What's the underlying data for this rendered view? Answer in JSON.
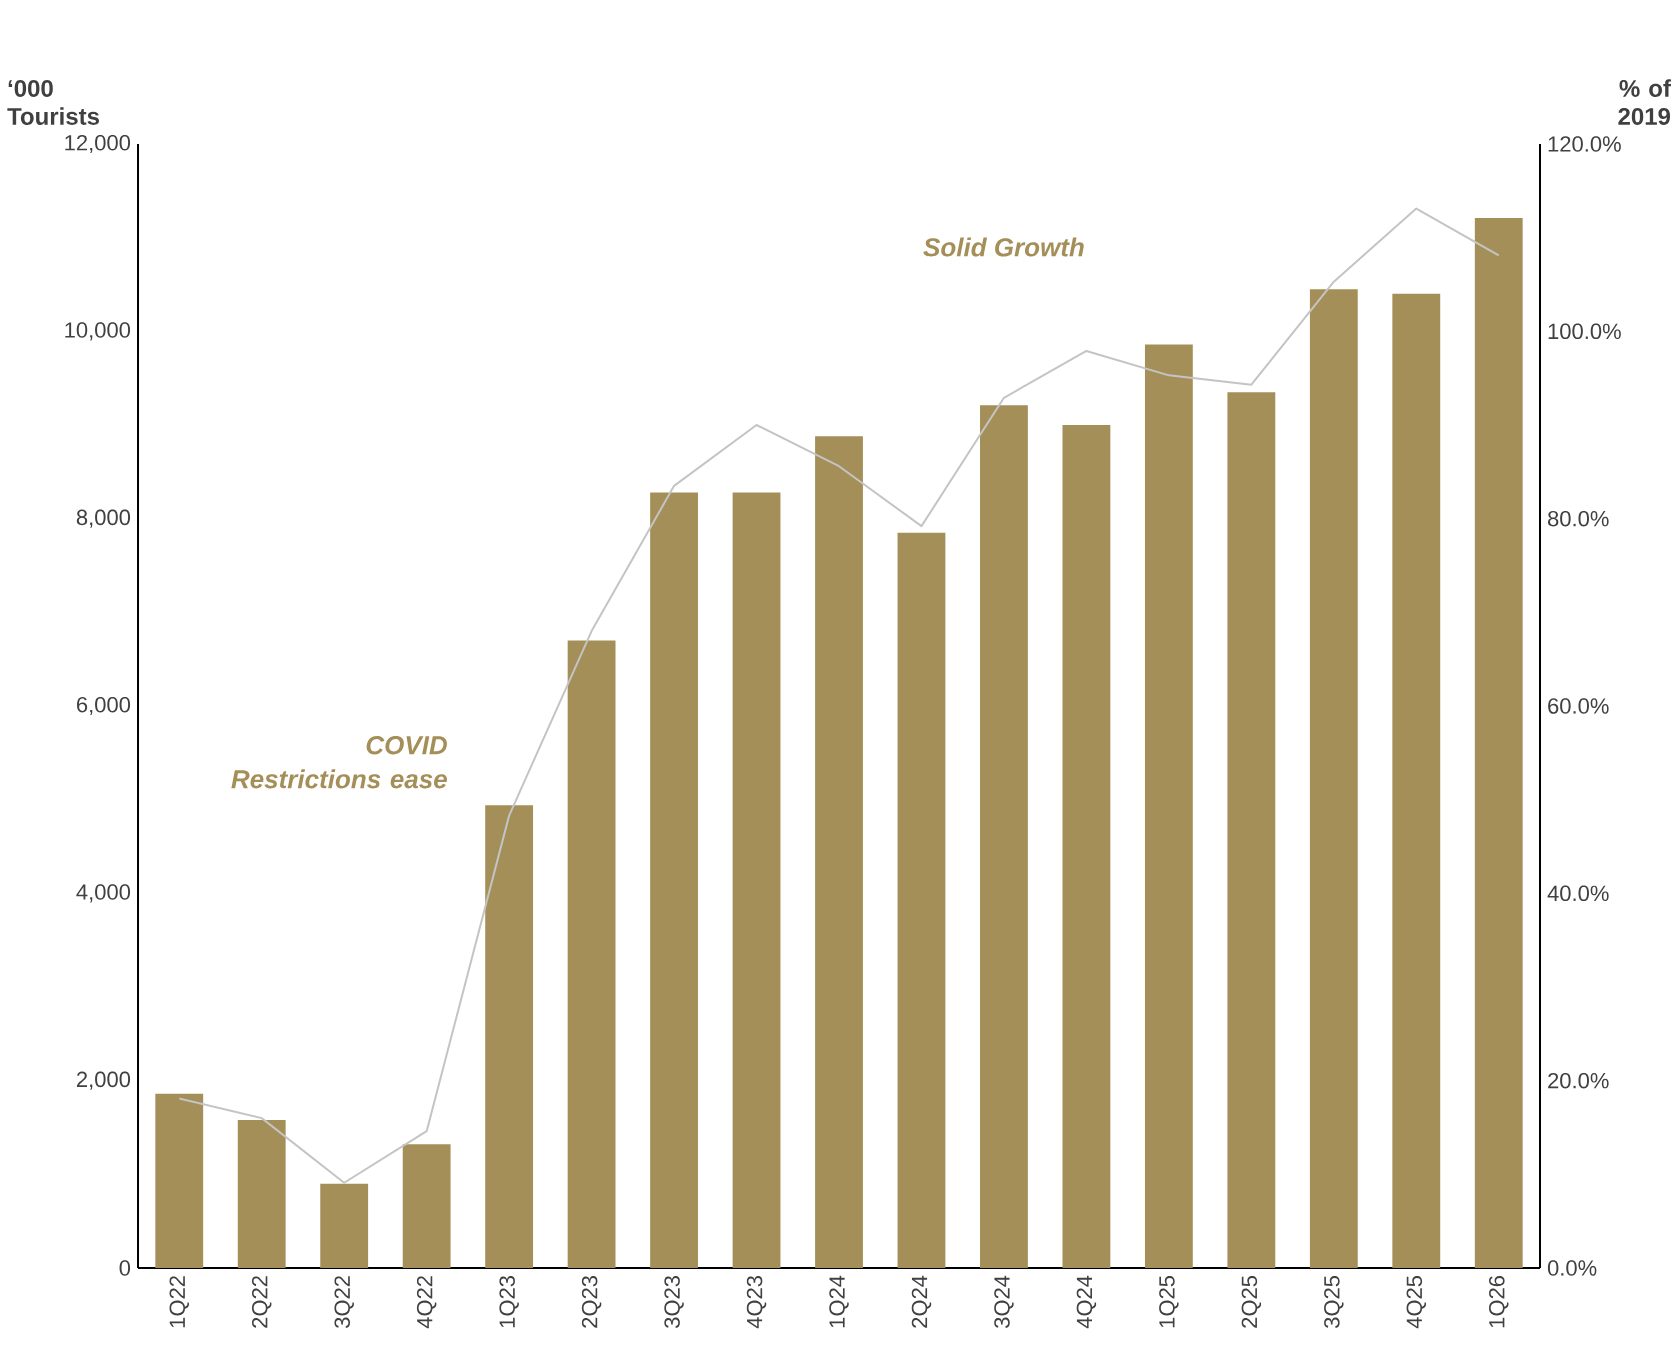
{
  "chart_data": {
    "type": "bar",
    "categories": [
      "1Q22",
      "2Q22",
      "3Q22",
      "4Q22",
      "1Q23",
      "2Q23",
      "3Q23",
      "4Q23",
      "1Q24",
      "2Q24",
      "3Q24",
      "4Q24",
      "1Q25",
      "2Q25",
      "3Q25",
      "4Q25",
      "1Q26"
    ],
    "series": [
      {
        "axis": "y",
        "color": "#a48f58",
        "values": [
          1860,
          1580,
          900,
          1320,
          4940,
          6700,
          8280,
          8280,
          8880,
          7850,
          9210,
          9000,
          9860,
          9350,
          10450,
          10400,
          11210
        ]
      },
      {
        "type": "line",
        "axis": "y2",
        "color": "#c4c4c4",
        "values": [
          18.1,
          16.0,
          9.1,
          14.6,
          48.3,
          68.0,
          83.5,
          90.0,
          85.6,
          79.2,
          92.9,
          97.9,
          95.3,
          94.3,
          105.3,
          113.1,
          108.1
        ]
      }
    ],
    "ylabel": "‘000 Tourists",
    "y2label": "% of 2019",
    "ylim": [
      0,
      12000
    ],
    "yticks": [
      0,
      {
        "value": 2000,
        "label": "2,000"
      },
      {
        "value": 4000,
        "label": "4,000"
      },
      {
        "value": 6000,
        "label": "6,000"
      },
      {
        "value": 8000,
        "label": "8,000"
      },
      {
        "value": 10000,
        "label": "10,000"
      },
      {
        "value": 12000,
        "label": "12,000"
      }
    ],
    "y2lim": [
      0,
      120
    ],
    "y2ticks": [
      {
        "value": 0,
        "label": "0.0%"
      },
      {
        "value": 20,
        "label": "20.0%"
      },
      {
        "value": 40,
        "label": "40.0%"
      },
      {
        "value": 60,
        "label": "60.0%"
      },
      {
        "value": 80,
        "label": "80.0%"
      },
      {
        "value": 100,
        "label": "100.0%"
      },
      {
        "value": 120,
        "label": "120.0%"
      }
    ],
    "marker": "none",
    "annotations": [
      "COVID Restrictions ease",
      "Solid Growth"
    ]
  }
}
